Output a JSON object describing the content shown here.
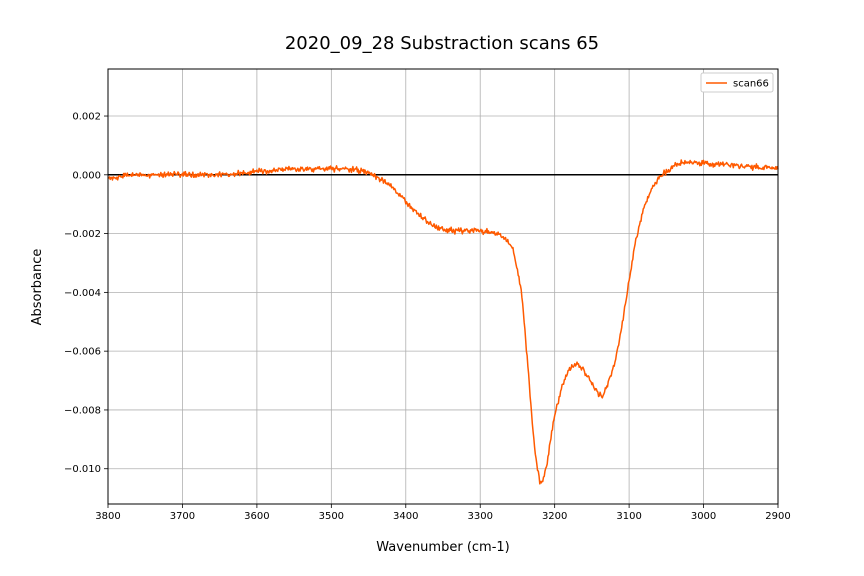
{
  "chart_data": {
    "type": "line",
    "title": "2020_09_28 Substraction scans 65",
    "xlabel": "Wavenumber (cm-1)",
    "ylabel": "Absorbance",
    "xlim": [
      3800,
      2900
    ],
    "ylim": [
      -0.0112,
      0.0036
    ],
    "x_reversed": true,
    "grid": true,
    "legend_position": "top-right",
    "xticks": [
      3800,
      3700,
      3600,
      3500,
      3400,
      3300,
      3200,
      3100,
      3000,
      2900
    ],
    "xtick_labels": [
      "3800",
      "3700",
      "3600",
      "3500",
      "3400",
      "3300",
      "3200",
      "3100",
      "3000",
      "2900"
    ],
    "yticks": [
      0.002,
      0.0,
      -0.002,
      -0.004,
      -0.006,
      -0.008,
      -0.01
    ],
    "ytick_labels": [
      "0.002",
      "0.000",
      "−0.002",
      "−0.004",
      "−0.006",
      "−0.008",
      "−0.010"
    ],
    "reference_line": {
      "y": 0.0,
      "color": "#000000"
    },
    "series": [
      {
        "name": "scan66",
        "color": "#ff5a00",
        "noise_amplitude": 0.00012,
        "x": [
          3800,
          3750,
          3700,
          3650,
          3600,
          3550,
          3500,
          3470,
          3450,
          3430,
          3420,
          3400,
          3380,
          3360,
          3340,
          3320,
          3300,
          3280,
          3265,
          3255,
          3250,
          3245,
          3240,
          3235,
          3230,
          3225,
          3220,
          3215,
          3210,
          3205,
          3200,
          3190,
          3180,
          3170,
          3165,
          3160,
          3150,
          3140,
          3135,
          3130,
          3120,
          3110,
          3100,
          3090,
          3080,
          3070,
          3060,
          3050,
          3040,
          3030,
          3000,
          2950,
          2900
        ],
        "y": [
          -0.0001,
          0.0,
          0.0,
          0.0,
          0.0001,
          0.0002,
          0.0002,
          0.0002,
          0.0001,
          -0.0002,
          -0.0004,
          -0.0009,
          -0.0014,
          -0.0018,
          -0.0019,
          -0.0019,
          -0.0019,
          -0.002,
          -0.0022,
          -0.0026,
          -0.0033,
          -0.0039,
          -0.0053,
          -0.0068,
          -0.0085,
          -0.0097,
          -0.0104,
          -0.0104,
          -0.0098,
          -0.0089,
          -0.0082,
          -0.0072,
          -0.0066,
          -0.0064,
          -0.0065,
          -0.0067,
          -0.0071,
          -0.0075,
          -0.0075,
          -0.0072,
          -0.0065,
          -0.0052,
          -0.0036,
          -0.0021,
          -0.0011,
          -0.0005,
          -0.0001,
          0.0001,
          0.0003,
          0.0004,
          0.0004,
          0.0003,
          0.0002
        ]
      }
    ]
  }
}
